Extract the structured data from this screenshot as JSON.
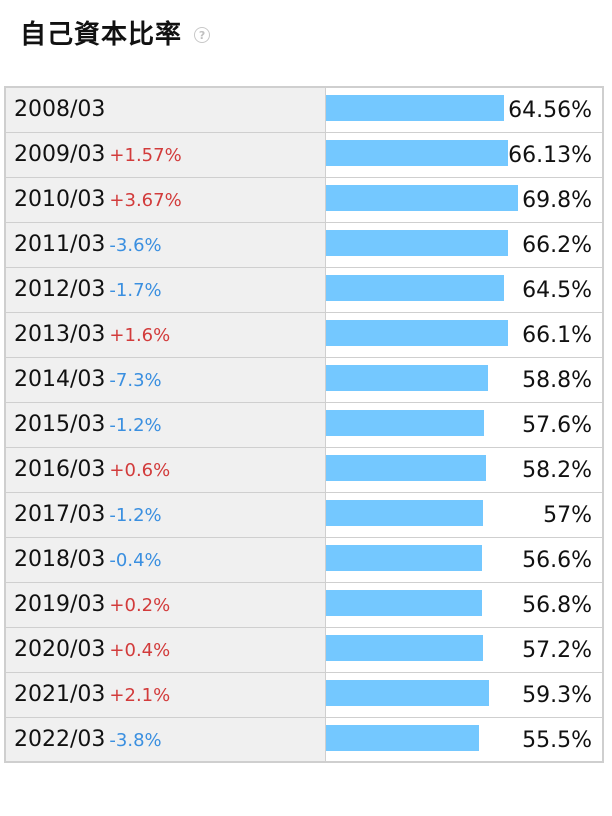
{
  "title": "自己資本比率",
  "help_icon": "question-icon",
  "bar_color": "#74c8ff",
  "up_color": "#d23b3b",
  "down_color": "#3a8fe0",
  "chart_data": {
    "type": "bar",
    "title": "自己資本比率",
    "categories": [
      "2008/03",
      "2009/03",
      "2010/03",
      "2011/03",
      "2012/03",
      "2013/03",
      "2014/03",
      "2015/03",
      "2016/03",
      "2017/03",
      "2018/03",
      "2019/03",
      "2020/03",
      "2021/03",
      "2022/03"
    ],
    "values": [
      64.56,
      66.13,
      69.8,
      66.2,
      64.5,
      66.1,
      58.8,
      57.6,
      58.2,
      57,
      56.6,
      56.8,
      57.2,
      59.3,
      55.5
    ],
    "value_labels": [
      "64.56%",
      "66.13%",
      "69.8%",
      "66.2%",
      "64.5%",
      "66.1%",
      "58.8%",
      "57.6%",
      "58.2%",
      "57%",
      "56.6%",
      "56.8%",
      "57.2%",
      "59.3%",
      "55.5%"
    ],
    "changes": [
      "",
      "+1.57%",
      "+3.67%",
      "-3.6%",
      "-1.7%",
      "+1.6%",
      "-7.3%",
      "-1.2%",
      "+0.6%",
      "-1.2%",
      "-0.4%",
      "+0.2%",
      "+0.4%",
      "+2.1%",
      "-3.8%"
    ],
    "ylim": [
      0,
      100
    ]
  }
}
